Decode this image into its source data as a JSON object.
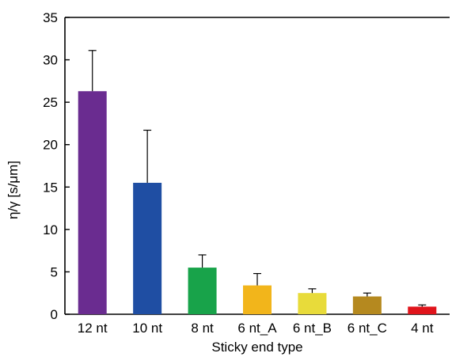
{
  "chart_data": {
    "type": "bar",
    "title": "",
    "xlabel": "Sticky end type",
    "ylabel": "η/γ [s/μm]",
    "ylim": [
      0,
      35
    ],
    "yticks": [
      "0",
      "5",
      "10",
      "15",
      "20",
      "25",
      "30",
      "35"
    ],
    "categories": [
      "12 nt",
      "10 nt",
      "8 nt",
      "6 nt_A",
      "6 nt_B",
      "6 nt_C",
      "4 nt"
    ],
    "values": [
      26.3,
      15.5,
      5.5,
      3.4,
      2.5,
      2.1,
      0.9
    ],
    "errors": [
      4.8,
      6.2,
      1.5,
      1.4,
      0.5,
      0.4,
      0.2
    ],
    "colors": [
      "#6a2c90",
      "#1f4ea3",
      "#18a34a",
      "#f2b51b",
      "#e8db3a",
      "#b5891f",
      "#e0141b"
    ],
    "grid": false,
    "legend": "none"
  }
}
